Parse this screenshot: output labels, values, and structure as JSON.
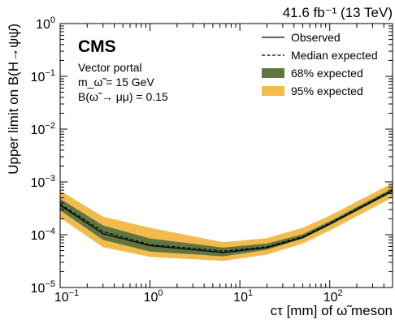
{
  "chart_data": {
    "type": "line",
    "header_right": "41.6 fb⁻¹ (13 TeV)",
    "experiment": "CMS",
    "annotations": [
      "Vector portal",
      "m_ω̃ = 15 GeV",
      "B(ω̃ → μμ) = 0.15"
    ],
    "xlabel": "cτ [mm] of ω̃ meson",
    "ylabel": "Upper limit on B(H→ψψ̄)",
    "xscale": "log",
    "yscale": "log",
    "xlim": [
      0.1,
      500
    ],
    "ylim": [
      1e-05,
      1
    ],
    "x_ticks": [
      {
        "value": 0.1,
        "base": "10",
        "exp": "−1"
      },
      {
        "value": 1,
        "base": "10",
        "exp": "0"
      },
      {
        "value": 10,
        "base": "10",
        "exp": "1"
      },
      {
        "value": 100,
        "base": "10",
        "exp": "2"
      }
    ],
    "y_ticks": [
      {
        "value": 1e-05,
        "base": "10",
        "exp": "−5"
      },
      {
        "value": 0.0001,
        "base": "10",
        "exp": "−4"
      },
      {
        "value": 0.001,
        "base": "10",
        "exp": "−3"
      },
      {
        "value": 0.01,
        "base": "10",
        "exp": "−2"
      },
      {
        "value": 0.1,
        "base": "10",
        "exp": "−1"
      },
      {
        "value": 1,
        "base": "10",
        "exp": "0"
      }
    ],
    "legend_position": "top-right",
    "legend": [
      {
        "label": "Observed",
        "style": "solid"
      },
      {
        "label": "Median expected",
        "style": "dashed"
      },
      {
        "label": "68% expected",
        "style": "band68"
      },
      {
        "label": "95% expected",
        "style": "band95"
      }
    ],
    "colors": {
      "band68": "#607641",
      "band95": "#F1BB4E",
      "line": "#000000"
    },
    "x": [
      0.1,
      0.3,
      1,
      6.5,
      20,
      50,
      100,
      500
    ],
    "observed": [
      0.00036,
      0.000105,
      6.2e-05,
      4.6e-05,
      5.7e-05,
      8.8e-05,
      0.00016,
      0.00068
    ],
    "expected": [
      0.00038,
      0.000115,
      6.5e-05,
      4.9e-05,
      5.9e-05,
      9.2e-05,
      0.000165,
      0.0007
    ],
    "band68_low": [
      0.00029,
      8e-05,
      4.8e-05,
      3.9e-05,
      5.2e-05,
      8.5e-05,
      0.00015,
      0.00064
    ],
    "band68_high": [
      0.00048,
      0.00015,
      8.5e-05,
      5.7e-05,
      6.8e-05,
      0.000102,
      0.00018,
      0.00076
    ],
    "band95_low": [
      0.00021,
      5.8e-05,
      3.8e-05,
      3.2e-05,
      4.2e-05,
      6.8e-05,
      0.00012,
      0.00051
    ],
    "band95_high": [
      0.00068,
      0.00022,
      0.000135,
      7.2e-05,
      8.6e-05,
      0.000135,
      0.00023,
      0.00095
    ]
  }
}
